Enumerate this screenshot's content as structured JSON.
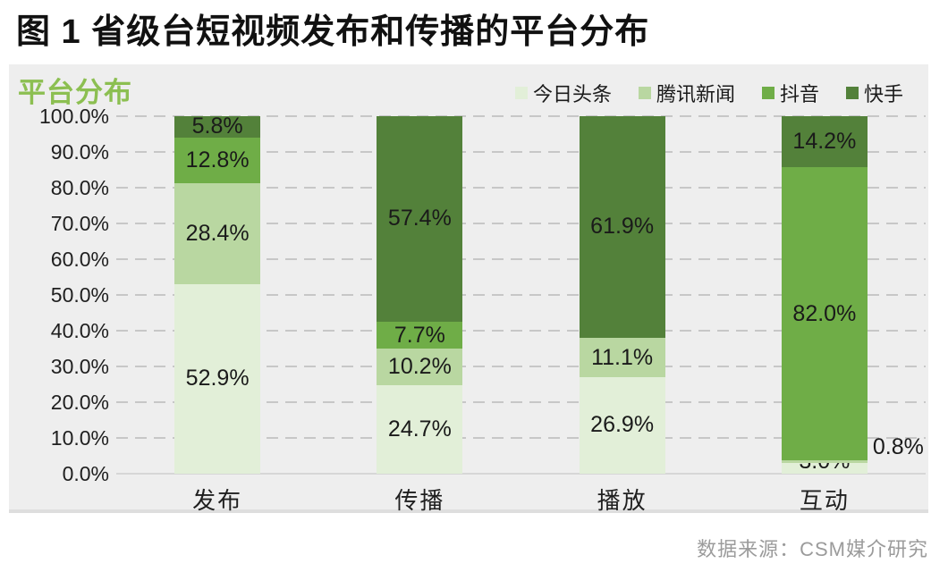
{
  "page_title": "图 1  省级台短视频发布和传播的平台分布",
  "panel": {
    "header": "平台分布",
    "source_note": "数据来源：CSM媒介研究"
  },
  "colors": {
    "panel_background": "#eeeeee",
    "header_green": "#8cbf51",
    "gridline": "#c7c7c7",
    "source_text": "#9b9b9b"
  },
  "chart_data": {
    "type": "bar",
    "stacked": true,
    "title": "平台分布",
    "categories": [
      "发布",
      "传播",
      "播放",
      "互动"
    ],
    "series": [
      {
        "name": "今日头条",
        "color": "#e2efd8",
        "values": [
          52.9,
          24.7,
          26.9,
          3.0
        ]
      },
      {
        "name": "腾讯新闻",
        "color": "#b9d7a1",
        "values": [
          28.4,
          10.2,
          11.1,
          0.8
        ]
      },
      {
        "name": "抖音",
        "color": "#6fad47",
        "values": [
          12.8,
          7.7,
          0,
          82.0
        ]
      },
      {
        "name": "快手",
        "color": "#53813a",
        "values": [
          5.8,
          57.4,
          61.9,
          14.2
        ]
      }
    ],
    "data_label_format": "{value}%",
    "data_labels": {
      "发布": [
        "52.9%",
        "28.4%",
        "12.8%",
        "5.8%"
      ],
      "传播": [
        "24.7%",
        "10.2%",
        "7.7%",
        "57.4%"
      ],
      "播放": [
        "26.9%",
        "11.1%",
        "",
        "61.9%"
      ],
      "互动": [
        "3.0%",
        "0.8%",
        "82.0%",
        "14.2%"
      ]
    },
    "label_overrides": [
      {
        "category": "互动",
        "series": "腾讯新闻",
        "position": "outside-right"
      },
      {
        "category": "互动",
        "series": "今日头条",
        "position": "inside-bottom"
      }
    ],
    "ylim": [
      0,
      100
    ],
    "ytick_step": 10,
    "ytick_labels": [
      "0.0%",
      "10.0%",
      "20.0%",
      "30.0%",
      "40.0%",
      "50.0%",
      "60.0%",
      "70.0%",
      "80.0%",
      "90.0%",
      "100.0%"
    ],
    "grid": "dashed-horizontal",
    "legend_position": "top-right"
  }
}
